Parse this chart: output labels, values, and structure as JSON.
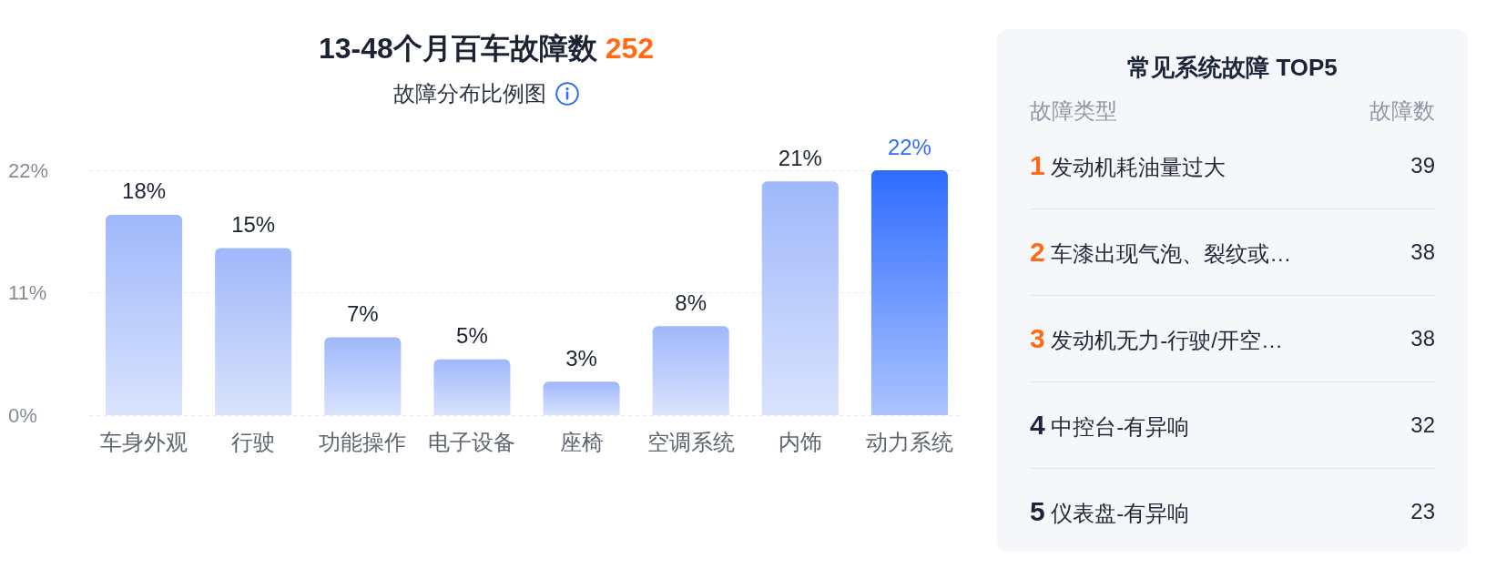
{
  "chart_data": [
    {
      "type": "bar",
      "title": "13-48个月百车故障数 252",
      "subtitle": "故障分布比例图",
      "categories": [
        "车身外观",
        "行驶",
        "功能操作",
        "电子设备",
        "座椅",
        "空调系统",
        "内饰",
        "动力系统"
      ],
      "values": [
        18,
        15,
        7,
        5,
        3,
        8,
        21,
        22
      ],
      "colors": [
        "#9fb8fb",
        "#9fb8fb",
        "#9fb8fb",
        "#9fb8fb",
        "#9fb8fb",
        "#9fb8fb",
        "#9fb8fb",
        "#2e6bff"
      ],
      "value_labels": [
        "18%",
        "15%",
        "7%",
        "5%",
        "3%",
        "8%",
        "21%",
        "22%"
      ],
      "ylim": [
        0,
        22
      ],
      "yticks": [
        {
          "value": 0,
          "label": "0%"
        },
        {
          "value": 11,
          "label": "11%"
        },
        {
          "value": 22,
          "label": "22%"
        }
      ],
      "grid": "y"
    },
    {
      "type": "other",
      "title": "常见系统故障 TOP5",
      "xlabel": "故障类型",
      "ylabel": "故障数",
      "categories": [
        "1 发动机耗油量过大",
        "2 车漆出现气泡、裂纹或…",
        "3 发动机无力-行驶/开空…",
        "4 中控台-有异响",
        "5 仪表盘-有异响"
      ],
      "values": [
        39,
        38,
        38,
        32,
        23
      ],
      "data_labels": true
    }
  ]
}
